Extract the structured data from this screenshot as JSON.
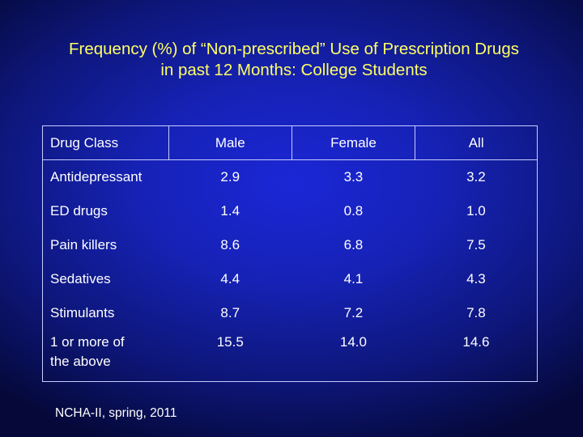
{
  "slide": {
    "title_line1": "Frequency (%) of “Non-prescribed” Use of Prescription Drugs",
    "title_line2": "in past 12 Months: College Students",
    "source": "NCHA-II, spring, 2011"
  },
  "table": {
    "headers": [
      "Drug Class",
      "Male",
      "Female",
      "All"
    ],
    "rows": [
      {
        "label": "Antidepressant",
        "male": "2.9",
        "female": "3.3",
        "all": "3.2"
      },
      {
        "label": "ED drugs",
        "male": "1.4",
        "female": "0.8",
        "all": "1.0"
      },
      {
        "label": "Pain killers",
        "male": "8.6",
        "female": "6.8",
        "all": "7.5"
      },
      {
        "label": "Sedatives",
        "male": "4.4",
        "female": "4.1",
        "all": "4.3"
      },
      {
        "label": "Stimulants",
        "male": "8.7",
        "female": "7.2",
        "all": "7.8"
      },
      {
        "label_line1": "1 or more of",
        "label_line2": "the above",
        "male": "15.5",
        "female": "14.0",
        "all": "14.6"
      }
    ]
  },
  "colors": {
    "title": "#ffff66",
    "background": "#1622b5",
    "text": "#ffffff",
    "rule": "#c8ccff"
  }
}
